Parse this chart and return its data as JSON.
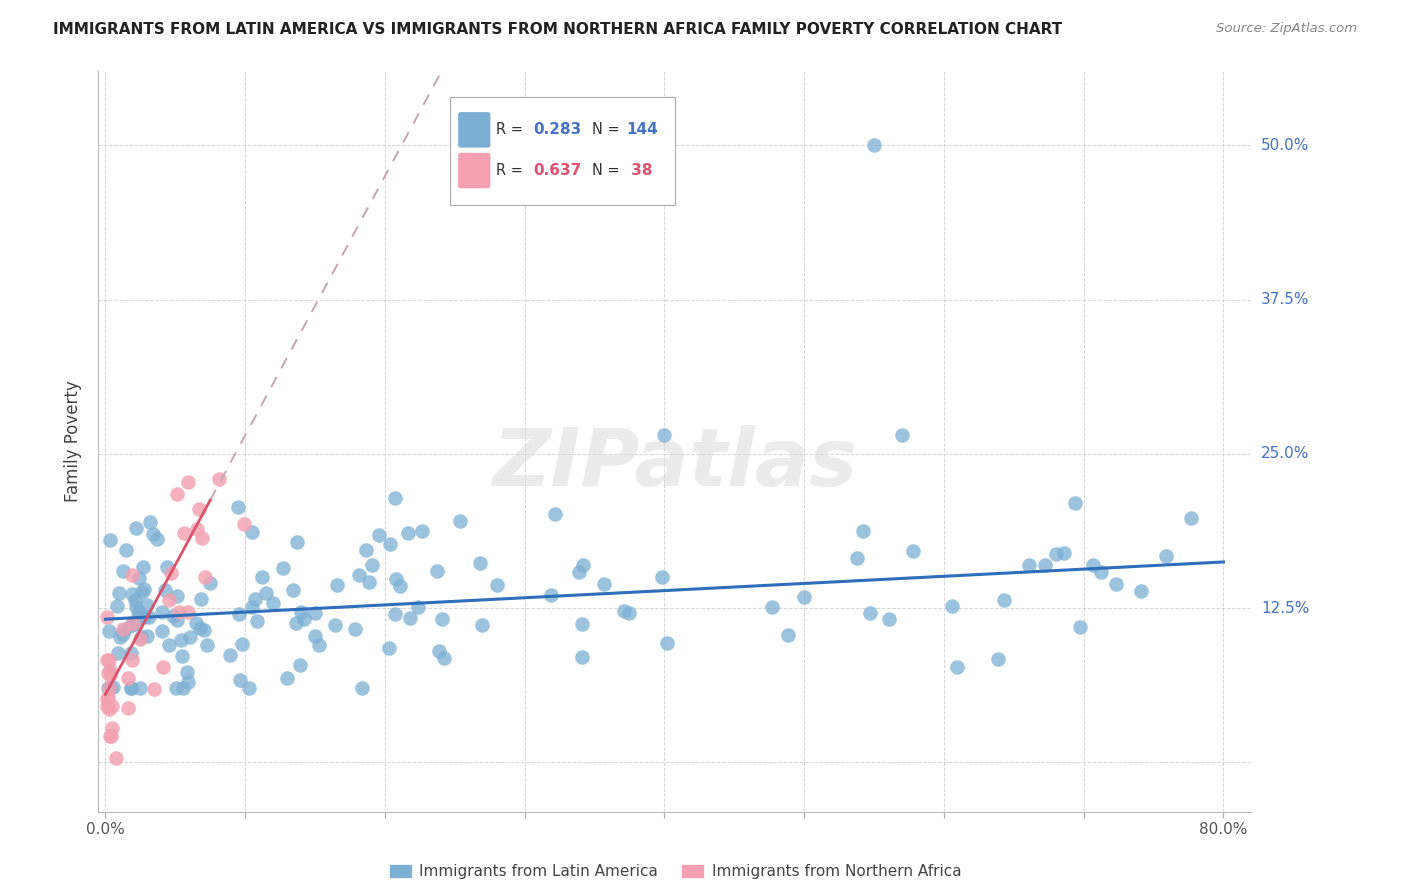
{
  "title": "IMMIGRANTS FROM LATIN AMERICA VS IMMIGRANTS FROM NORTHERN AFRICA FAMILY POVERTY CORRELATION CHART",
  "source": "Source: ZipAtlas.com",
  "ylabel": "Family Poverty",
  "ytick_vals": [
    0.0,
    0.125,
    0.25,
    0.375,
    0.5
  ],
  "ytick_labels": [
    "",
    "12.5%",
    "25.0%",
    "37.5%",
    "50.0%"
  ],
  "xlim": [
    -0.005,
    0.82
  ],
  "ylim": [
    -0.04,
    0.56
  ],
  "color_blue": "#7BAFD4",
  "color_pink": "#F4A0B0",
  "line_blue": "#2F6EBA",
  "line_pink": "#D9536B",
  "line_pink_dash": "#C8A0A8",
  "watermark_color": "#D8D8D8",
  "legend_r1": "0.283",
  "legend_n1": "144",
  "legend_r2": "0.637",
  "legend_n2": " 38",
  "r_color_blue": "#4472C4",
  "r_color_pink": "#E05070",
  "ytick_color": "#4472C4",
  "blue_slope": 0.058,
  "blue_intercept": 0.116,
  "pink_slope": 2.1,
  "pink_intercept": 0.055
}
